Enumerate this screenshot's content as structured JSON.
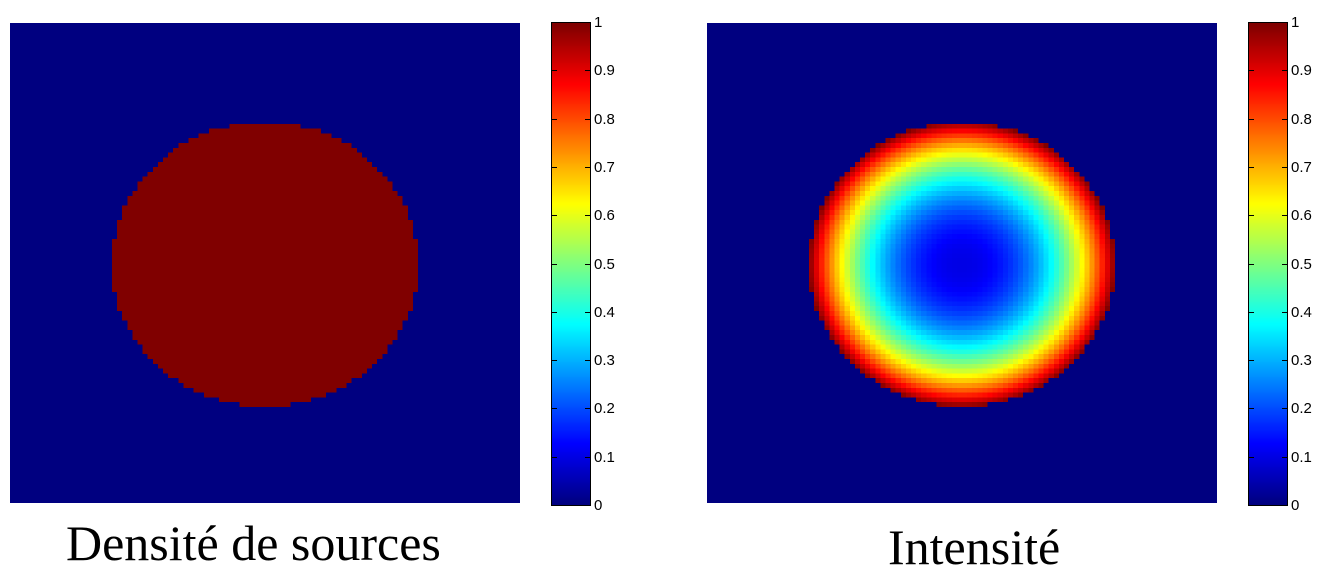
{
  "chart_data": [
    {
      "type": "heatmap",
      "title": "Densité de sources",
      "colormap": "jet",
      "grid_size": [
        100,
        100
      ],
      "pattern": "uniform disk",
      "inside_value": 1,
      "outside_value": 0,
      "colorbar": {
        "range": [
          0,
          1
        ],
        "ticks": [
          "0",
          "0.1",
          "0.2",
          "0.3",
          "0.4",
          "0.5",
          "0.6",
          "0.7",
          "0.8",
          "0.9",
          "1"
        ]
      }
    },
    {
      "type": "heatmap",
      "title": "Intensité",
      "colormap": "jet",
      "grid_size": [
        100,
        100
      ],
      "pattern": "radial ring",
      "center_value": 0.1,
      "edge_value": 1,
      "outside_value": 0,
      "colorbar": {
        "range": [
          0,
          1
        ],
        "ticks": [
          "0",
          "0.1",
          "0.2",
          "0.3",
          "0.4",
          "0.5",
          "0.6",
          "0.7",
          "0.8",
          "0.9",
          "1"
        ]
      }
    }
  ]
}
